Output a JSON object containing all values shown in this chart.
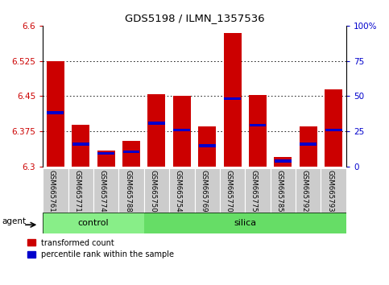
{
  "title": "GDS5198 / ILMN_1357536",
  "samples": [
    "GSM665761",
    "GSM665771",
    "GSM665774",
    "GSM665788",
    "GSM665750",
    "GSM665754",
    "GSM665769",
    "GSM665770",
    "GSM665775",
    "GSM665785",
    "GSM665792",
    "GSM665793"
  ],
  "groups": [
    "control",
    "control",
    "control",
    "control",
    "silica",
    "silica",
    "silica",
    "silica",
    "silica",
    "silica",
    "silica",
    "silica"
  ],
  "red_values": [
    6.525,
    6.39,
    6.335,
    6.355,
    6.455,
    6.45,
    6.385,
    6.585,
    6.452,
    6.32,
    6.385,
    6.465
  ],
  "blue_values": [
    6.415,
    6.348,
    6.328,
    6.332,
    6.393,
    6.378,
    6.345,
    6.445,
    6.388,
    6.312,
    6.348,
    6.378
  ],
  "ymin": 6.3,
  "ymax": 6.6,
  "yticks": [
    6.3,
    6.375,
    6.45,
    6.525,
    6.6
  ],
  "ytick_labels": [
    "6.3",
    "6.375",
    "6.45",
    "6.525",
    "6.6"
  ],
  "right_yticks": [
    0,
    25,
    50,
    75,
    100
  ],
  "right_ytick_labels": [
    "0",
    "25",
    "50",
    "75",
    "100%"
  ],
  "red_color": "#cc0000",
  "blue_color": "#0000cc",
  "control_color": "#88ee88",
  "silica_color": "#66dd66",
  "agent_label": "agent",
  "legend1": "transformed count",
  "legend2": "percentile rank within the sample",
  "bar_width": 0.7,
  "label_bg_color": "#cccccc",
  "n_control": 4,
  "n_silica": 8
}
